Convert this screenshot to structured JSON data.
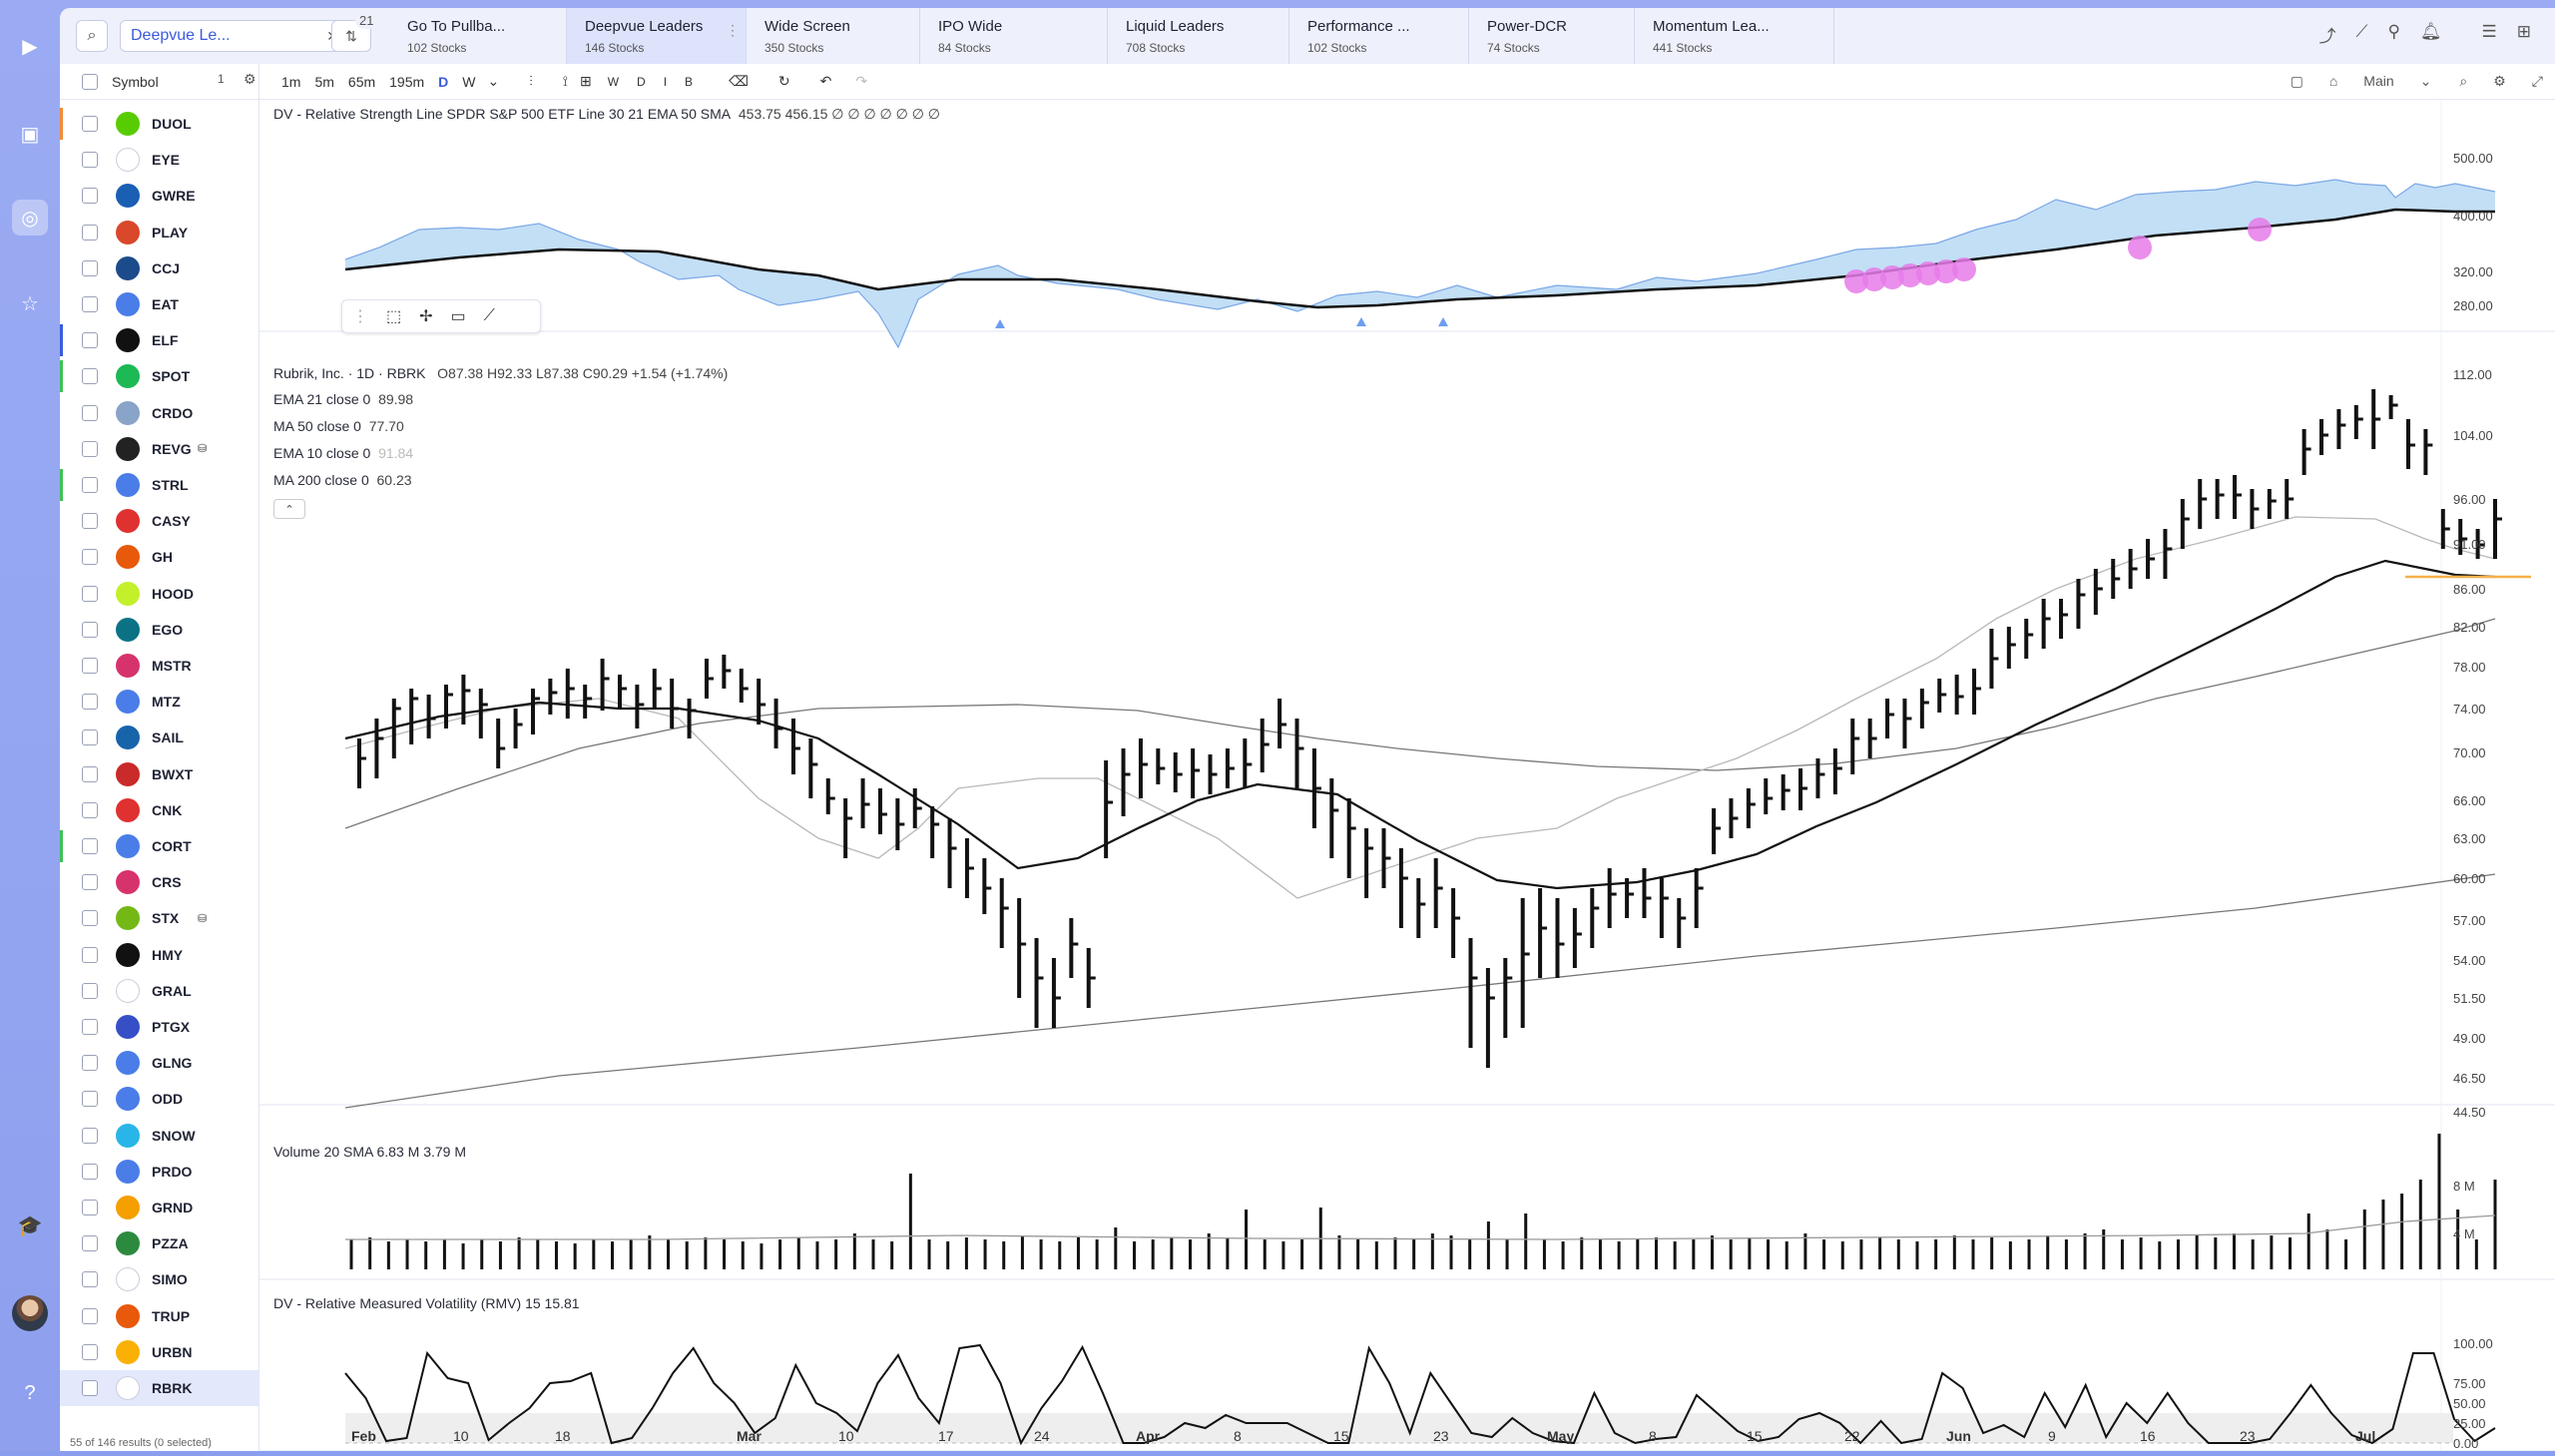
{
  "watchlist": {
    "selected": "Deepvue Le...",
    "filter_count": "21"
  },
  "tabs": [
    {
      "name": "Go To Pullba...",
      "sub": "102 Stocks"
    },
    {
      "name": "Deepvue Leaders",
      "sub": "146 Stocks"
    },
    {
      "name": "Wide Screen",
      "sub": "350 Stocks"
    },
    {
      "name": "IPO Wide",
      "sub": "84 Stocks"
    },
    {
      "name": "Liquid Leaders",
      "sub": "708 Stocks"
    },
    {
      "name": "Performance ...",
      "sub": "102 Stocks"
    },
    {
      "name": "Power-DCR",
      "sub": "74 Stocks"
    },
    {
      "name": "Momentum Lea...",
      "sub": "441 Stocks"
    }
  ],
  "list": {
    "header": "Symbol",
    "header_count": "1",
    "footer": "55 of 146 results (0 selected)",
    "rows": [
      {
        "sym": "DUOL",
        "bar": "#f08c3a",
        "logo": "#58cc02"
      },
      {
        "sym": "EYE",
        "bar": "",
        "logo": "#ffffff"
      },
      {
        "sym": "GWRE",
        "bar": "",
        "logo": "#1a5fb4"
      },
      {
        "sym": "PLAY",
        "bar": "",
        "logo": "#d9482b"
      },
      {
        "sym": "CCJ",
        "bar": "",
        "logo": "#1c4b8c"
      },
      {
        "sym": "EAT",
        "bar": "",
        "logo": "#4a7de8"
      },
      {
        "sym": "ELF",
        "bar": "#3b5bdb",
        "logo": "#111111"
      },
      {
        "sym": "SPOT",
        "bar": "#40c057",
        "logo": "#1db954"
      },
      {
        "sym": "CRDO",
        "bar": "",
        "logo": "#8aa3c8"
      },
      {
        "sym": "REVG",
        "bar": "",
        "logo": "#222222",
        "db": true
      },
      {
        "sym": "STRL",
        "bar": "#40c057",
        "logo": "#4a7de8"
      },
      {
        "sym": "CASY",
        "bar": "",
        "logo": "#e03131"
      },
      {
        "sym": "GH",
        "bar": "",
        "logo": "#e8590c"
      },
      {
        "sym": "HOOD",
        "bar": "",
        "logo": "#c3f02b"
      },
      {
        "sym": "EGO",
        "bar": "",
        "logo": "#0b7285"
      },
      {
        "sym": "MSTR",
        "bar": "",
        "logo": "#d6336c"
      },
      {
        "sym": "MTZ",
        "bar": "",
        "logo": "#4a7de8"
      },
      {
        "sym": "SAIL",
        "bar": "",
        "logo": "#1864ab"
      },
      {
        "sym": "BWXT",
        "bar": "",
        "logo": "#c92a2a"
      },
      {
        "sym": "CNK",
        "bar": "",
        "logo": "#e03131"
      },
      {
        "sym": "CORT",
        "bar": "#40c057",
        "logo": "#4a7de8"
      },
      {
        "sym": "CRS",
        "bar": "",
        "logo": "#d6336c"
      },
      {
        "sym": "STX",
        "bar": "",
        "logo": "#74b816",
        "db": true
      },
      {
        "sym": "HMY",
        "bar": "",
        "logo": "#111111"
      },
      {
        "sym": "GRAL",
        "bar": "",
        "logo": "#ffffff"
      },
      {
        "sym": "PTGX",
        "bar": "",
        "logo": "#364fc7"
      },
      {
        "sym": "GLNG",
        "bar": "",
        "logo": "#4a7de8"
      },
      {
        "sym": "ODD",
        "bar": "",
        "logo": "#4a7de8"
      },
      {
        "sym": "SNOW",
        "bar": "",
        "logo": "#29b5e8"
      },
      {
        "sym": "PRDO",
        "bar": "",
        "logo": "#4a7de8"
      },
      {
        "sym": "GRND",
        "bar": "",
        "logo": "#f59f00"
      },
      {
        "sym": "PZZA",
        "bar": "",
        "logo": "#2b8a3e"
      },
      {
        "sym": "SIMO",
        "bar": "",
        "logo": "#ffffff"
      },
      {
        "sym": "TRUP",
        "bar": "",
        "logo": "#e8590c"
      },
      {
        "sym": "URBN",
        "bar": "",
        "logo": "#fab005"
      },
      {
        "sym": "RBRK",
        "bar": "",
        "logo": "#ffffff",
        "selected": true
      }
    ]
  },
  "toolbar": {
    "timeframes": [
      "1m",
      "5m",
      "65m",
      "195m",
      "D",
      "W"
    ],
    "active_tf": "D",
    "period_btns": [
      "W",
      "D",
      "I",
      "B"
    ],
    "layout_label": "Main"
  },
  "rs_panel": {
    "legend_name": "DV - Relative Strength Line SPDR S&P 500 ETF Line 30 21 EMA 50 SMA",
    "legend_vals": "453.75  456.15  ∅ ∅ ∅ ∅ ∅ ∅ ∅",
    "axis": [
      "500.00",
      "400.00",
      "320.00",
      "280.00"
    ]
  },
  "price_panel": {
    "title": "Rubrik, Inc. · 1D · RBRK",
    "ohlc": "O87.38  H92.33  L87.38  C90.29  +1.54 (+1.74%)",
    "mas": [
      {
        "name": "EMA 21 close 0",
        "val": "89.98",
        "dim": false
      },
      {
        "name": "MA 50 close 0",
        "val": "77.70",
        "dim": false
      },
      {
        "name": "EMA 10 close 0",
        "val": "91.84",
        "dim": true
      },
      {
        "name": "MA 200 close 0",
        "val": "60.23",
        "dim": false
      }
    ],
    "axis": [
      "112.00",
      "104.00",
      "96.00",
      "91.00",
      "86.00",
      "82.00",
      "78.00",
      "74.00",
      "70.00",
      "66.00",
      "63.00",
      "60.00",
      "57.00",
      "54.00",
      "51.50",
      "49.00",
      "46.50",
      "44.50"
    ]
  },
  "volume_panel": {
    "legend": "Volume 20 SMA  6.83 M  3.79 M",
    "axis": [
      "8 M",
      "4 M"
    ]
  },
  "rmv_panel": {
    "legend": "DV - Relative Measured Volatility (RMV) 15  15.81",
    "axis": [
      "100.00",
      "75.00",
      "50.00",
      "25.00",
      "0.00"
    ]
  },
  "date_axis": [
    "Feb",
    "10",
    "18",
    "Mar",
    "10",
    "17",
    "24",
    "Apr",
    "8",
    "15",
    "23",
    "May",
    "8",
    "15",
    "22",
    "Jun",
    "9",
    "16",
    "23",
    "Jul"
  ]
}
